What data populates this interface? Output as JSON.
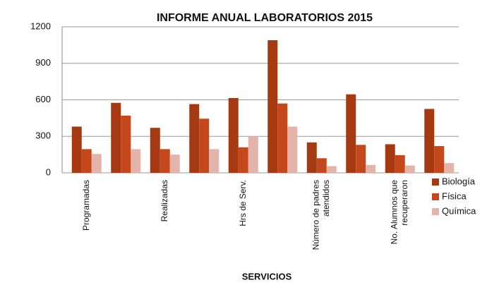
{
  "chart_data": {
    "type": "bar",
    "title": "INFORME ANUAL LABORATORIOS 2015",
    "x_label": "SERVICIOS",
    "categories": [
      "Programadas",
      null,
      "Realizadas",
      null,
      "Hrs de  Serv.",
      null,
      "Número de padres\natendidos",
      null,
      "No. Alumnos que\nrecuperaron",
      null
    ],
    "series": [
      {
        "name": "Biología",
        "color": "#a53a12",
        "values": [
          380,
          575,
          370,
          565,
          615,
          1090,
          250,
          645,
          235,
          525
        ]
      },
      {
        "name": "Física",
        "color": "#c4481c",
        "values": [
          195,
          470,
          195,
          445,
          210,
          570,
          120,
          230,
          145,
          220
        ]
      },
      {
        "name": "Química",
        "color": "#e2b4aa",
        "values": [
          155,
          195,
          150,
          195,
          300,
          380,
          55,
          65,
          60,
          80
        ]
      }
    ],
    "ylim": [
      0,
      1200
    ],
    "yticks": [
      0,
      300,
      600,
      900,
      1200
    ],
    "grid": true,
    "legend": "right"
  }
}
